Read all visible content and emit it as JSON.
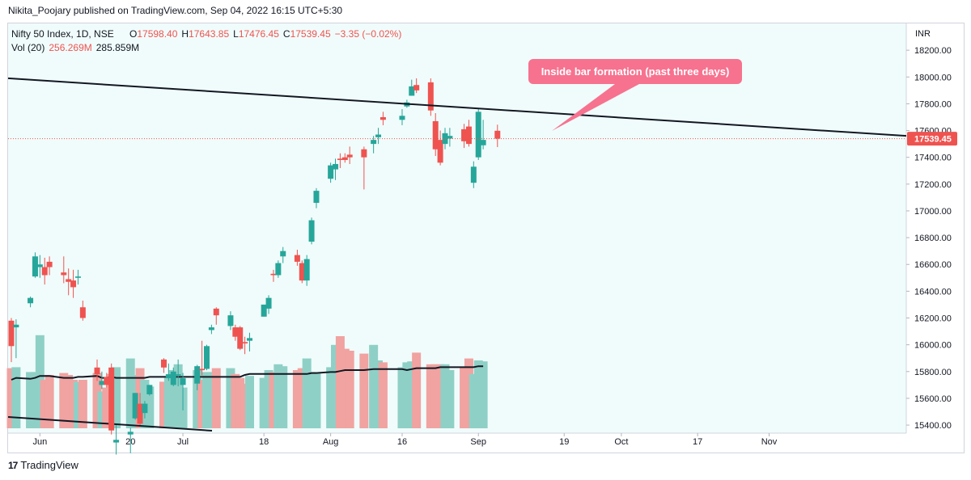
{
  "header": {
    "published": "Nikita_Poojary published on TradingView.com, Sep 04, 2022 16:15 UTC+5:30"
  },
  "legend": {
    "line1": {
      "symbol": "Nifty 50 Index, 1D, NSE",
      "o_label": "O",
      "o": "17598.40",
      "h_label": "H",
      "h": "17643.85",
      "l_label": "L",
      "l": "17476.45",
      "c_label": "C",
      "c": "17539.45",
      "chg": "−3.35 (−0.02%)"
    },
    "line2": {
      "label": "Vol (20)",
      "v1": "256.269M",
      "v2": "285.859M"
    }
  },
  "price_axis": {
    "currency": "INR",
    "last_price": "17539.45"
  },
  "annotation": {
    "text": "Inside bar formation (past three days)"
  },
  "footer": {
    "brand": "TradingView",
    "logo": "17"
  },
  "colors": {
    "up": "#26a69a",
    "down": "#ef5350",
    "vol_up": "#8fd0c6",
    "vol_down": "#f0a3a1",
    "bg": "#f0fcfb",
    "annotation": "#f7728f"
  },
  "chart_data": {
    "type": "candlestick",
    "symbol": "Nifty 50 Index",
    "interval": "1D",
    "y_ticks": [
      15400,
      15600,
      15800,
      16000,
      16200,
      16400,
      16600,
      16800,
      17000,
      17200,
      17400,
      17600,
      17800,
      18000,
      18200
    ],
    "x_ticks": [
      {
        "label": "Jun",
        "date": "2022-06-01"
      },
      {
        "label": "20",
        "date": "2022-06-20"
      },
      {
        "label": "Jul",
        "date": "2022-07-01"
      },
      {
        "label": "18",
        "date": "2022-07-18"
      },
      {
        "label": "Aug",
        "date": "2022-08-01"
      },
      {
        "label": "16",
        "date": "2022-08-16"
      },
      {
        "label": "Sep",
        "date": "2022-09-01"
      },
      {
        "label": "19",
        "date": "2022-09-19"
      },
      {
        "label": "Oct",
        "date": "2022-10-01"
      },
      {
        "label": "17",
        "date": "2022-10-17"
      },
      {
        "label": "Nov",
        "date": "2022-11-01"
      }
    ],
    "candles": [
      {
        "date": "2022-05-26",
        "o": 16180,
        "h": 16200,
        "l": 15870,
        "c": 15990
      },
      {
        "date": "2022-05-27",
        "o": 16130,
        "h": 16190,
        "l": 15900,
        "c": 16150
      },
      {
        "date": "2022-05-30",
        "o": 16310,
        "h": 16360,
        "l": 16280,
        "c": 16350
      },
      {
        "date": "2022-05-31",
        "o": 16510,
        "h": 16690,
        "l": 16500,
        "c": 16660
      },
      {
        "date": "2022-06-01",
        "o": 16580,
        "h": 16670,
        "l": 16500,
        "c": 16600
      },
      {
        "date": "2022-06-02",
        "o": 16580,
        "h": 16650,
        "l": 16450,
        "c": 16520
      },
      {
        "date": "2022-06-03",
        "o": 16620,
        "h": 16660,
        "l": 16520,
        "c": 16580
      },
      {
        "date": "2022-06-06",
        "o": 16540,
        "h": 16660,
        "l": 16460,
        "c": 16520
      },
      {
        "date": "2022-06-07",
        "o": 16490,
        "h": 16570,
        "l": 16370,
        "c": 16470
      },
      {
        "date": "2022-06-08",
        "o": 16480,
        "h": 16560,
        "l": 16350,
        "c": 16430
      },
      {
        "date": "2022-06-09",
        "o": 16500,
        "h": 16560,
        "l": 16450,
        "c": 16510
      },
      {
        "date": "2022-06-10",
        "o": 16280,
        "h": 16330,
        "l": 16180,
        "c": 16200
      },
      {
        "date": "2022-06-13",
        "o": 15830,
        "h": 15890,
        "l": 15730,
        "c": 15780
      },
      {
        "date": "2022-06-14",
        "o": 15700,
        "h": 15800,
        "l": 15670,
        "c": 15730
      },
      {
        "date": "2022-06-15",
        "o": 15760,
        "h": 15790,
        "l": 15680,
        "c": 15700
      },
      {
        "date": "2022-06-16",
        "o": 15830,
        "h": 15860,
        "l": 15330,
        "c": 15360
      },
      {
        "date": "2022-06-17",
        "o": 15270,
        "h": 15400,
        "l": 15180,
        "c": 15290
      },
      {
        "date": "2022-06-20",
        "o": 15330,
        "h": 15380,
        "l": 15190,
        "c": 15350
      },
      {
        "date": "2022-06-21",
        "o": 15450,
        "h": 15640,
        "l": 15440,
        "c": 15640
      },
      {
        "date": "2022-06-22",
        "o": 15560,
        "h": 15640,
        "l": 15400,
        "c": 15410
      },
      {
        "date": "2022-06-23",
        "o": 15490,
        "h": 15580,
        "l": 15450,
        "c": 15560
      },
      {
        "date": "2022-06-24",
        "o": 15630,
        "h": 15700,
        "l": 15620,
        "c": 15700
      },
      {
        "date": "2022-06-27",
        "o": 15890,
        "h": 15900,
        "l": 15790,
        "c": 15830
      },
      {
        "date": "2022-06-28",
        "o": 15750,
        "h": 15860,
        "l": 15730,
        "c": 15780
      },
      {
        "date": "2022-06-29",
        "o": 15700,
        "h": 15830,
        "l": 15690,
        "c": 15800
      },
      {
        "date": "2022-06-30",
        "o": 15770,
        "h": 15890,
        "l": 15690,
        "c": 15780
      },
      {
        "date": "2022-07-01",
        "o": 15700,
        "h": 15790,
        "l": 15510,
        "c": 15750
      },
      {
        "date": "2022-07-04",
        "o": 15710,
        "h": 15850,
        "l": 15660,
        "c": 15840
      },
      {
        "date": "2022-07-05",
        "o": 15820,
        "h": 16030,
        "l": 15770,
        "c": 15810
      },
      {
        "date": "2022-07-06",
        "o": 15820,
        "h": 16000,
        "l": 15810,
        "c": 15990
      },
      {
        "date": "2022-07-07",
        "o": 16110,
        "h": 16150,
        "l": 16080,
        "c": 16130
      },
      {
        "date": "2022-07-08",
        "o": 16270,
        "h": 16280,
        "l": 16150,
        "c": 16220
      },
      {
        "date": "2022-07-11",
        "o": 16140,
        "h": 16250,
        "l": 16110,
        "c": 16220
      },
      {
        "date": "2022-07-12",
        "o": 16130,
        "h": 16150,
        "l": 16030,
        "c": 16060
      },
      {
        "date": "2022-07-13",
        "o": 16130,
        "h": 16140,
        "l": 15960,
        "c": 15970
      },
      {
        "date": "2022-07-14",
        "o": 16020,
        "h": 16060,
        "l": 15930,
        "c": 16010
      },
      {
        "date": "2022-07-15",
        "o": 16030,
        "h": 16090,
        "l": 15950,
        "c": 16050
      },
      {
        "date": "2022-07-18",
        "o": 16210,
        "h": 16300,
        "l": 16210,
        "c": 16300
      },
      {
        "date": "2022-07-19",
        "o": 16270,
        "h": 16370,
        "l": 16230,
        "c": 16350
      },
      {
        "date": "2022-07-20",
        "o": 16530,
        "h": 16560,
        "l": 16470,
        "c": 16520
      },
      {
        "date": "2022-07-21",
        "o": 16520,
        "h": 16630,
        "l": 16500,
        "c": 16610
      },
      {
        "date": "2022-07-22",
        "o": 16660,
        "h": 16730,
        "l": 16610,
        "c": 16700
      },
      {
        "date": "2022-07-25",
        "o": 16670,
        "h": 16710,
        "l": 16590,
        "c": 16620
      },
      {
        "date": "2022-07-26",
        "o": 16610,
        "h": 16630,
        "l": 16460,
        "c": 16480
      },
      {
        "date": "2022-07-27",
        "o": 16480,
        "h": 16670,
        "l": 16440,
        "c": 16640
      },
      {
        "date": "2022-07-28",
        "o": 16770,
        "h": 16950,
        "l": 16750,
        "c": 16930
      },
      {
        "date": "2022-07-29",
        "o": 17060,
        "h": 17170,
        "l": 17020,
        "c": 17150
      },
      {
        "date": "2022-08-01",
        "o": 17240,
        "h": 17360,
        "l": 17210,
        "c": 17340
      },
      {
        "date": "2022-08-02",
        "o": 17310,
        "h": 17390,
        "l": 17230,
        "c": 17350
      },
      {
        "date": "2022-08-03",
        "o": 17390,
        "h": 17430,
        "l": 17320,
        "c": 17380
      },
      {
        "date": "2022-08-04",
        "o": 17400,
        "h": 17430,
        "l": 17360,
        "c": 17380
      },
      {
        "date": "2022-08-05",
        "o": 17420,
        "h": 17480,
        "l": 17350,
        "c": 17400
      },
      {
        "date": "2022-08-08",
        "o": 17460,
        "h": 17480,
        "l": 17160,
        "c": 17400
      },
      {
        "date": "2022-08-10",
        "o": 17500,
        "h": 17560,
        "l": 17430,
        "c": 17530
      },
      {
        "date": "2022-08-11",
        "o": 17550,
        "h": 17620,
        "l": 17500,
        "c": 17570
      },
      {
        "date": "2022-08-12",
        "o": 17700,
        "h": 17740,
        "l": 17640,
        "c": 17680
      },
      {
        "date": "2022-08-16",
        "o": 17680,
        "h": 17760,
        "l": 17640,
        "c": 17710
      },
      {
        "date": "2022-08-17",
        "o": 17780,
        "h": 17830,
        "l": 17770,
        "c": 17810
      },
      {
        "date": "2022-08-18",
        "o": 17860,
        "h": 17980,
        "l": 17860,
        "c": 17930
      },
      {
        "date": "2022-08-19",
        "o": 17940,
        "h": 17990,
        "l": 17880,
        "c": 17900
      },
      {
        "date": "2022-08-22",
        "o": 17960,
        "h": 17990,
        "l": 17710,
        "c": 17750
      },
      {
        "date": "2022-08-23",
        "o": 17670,
        "h": 17730,
        "l": 17410,
        "c": 17460
      },
      {
        "date": "2022-08-24",
        "o": 17530,
        "h": 17600,
        "l": 17340,
        "c": 17360
      },
      {
        "date": "2022-08-25",
        "o": 17500,
        "h": 17620,
        "l": 17460,
        "c": 17580
      },
      {
        "date": "2022-08-26",
        "o": 17540,
        "h": 17620,
        "l": 17480,
        "c": 17560
      },
      {
        "date": "2022-08-29",
        "o": 17610,
        "h": 17650,
        "l": 17470,
        "c": 17520
      },
      {
        "date": "2022-08-30",
        "o": 17630,
        "h": 17680,
        "l": 17480,
        "c": 17500
      },
      {
        "date": "2022-08-31",
        "o": 17210,
        "h": 17370,
        "l": 17170,
        "c": 17330
      },
      {
        "date": "2022-09-01",
        "o": 17400,
        "h": 17760,
        "l": 17380,
        "c": 17740
      },
      {
        "date": "2022-09-02",
        "o": 17490,
        "h": 17680,
        "l": 17460,
        "c": 17530
      },
      {
        "date": "2022-09-05",
        "o": 17598.4,
        "h": 17643.85,
        "l": 17476.45,
        "c": 17539.45
      }
    ],
    "volume_levels": [
      0.62,
      0.63,
      0.58,
      0.58,
      0.96,
      0.5,
      0.55,
      0.57,
      0.55,
      0.5,
      0.48,
      0.5,
      0.57,
      0.38,
      0.42,
      0.56,
      0.63,
      0.72,
      0.55,
      0.62,
      0.5,
      0.43,
      0.48,
      0.52,
      0.6,
      0.66,
      0.42,
      0.6,
      0.5,
      0.58,
      0.58,
      0.62,
      0.62,
      0.56,
      0.52,
      0.46,
      0.54,
      0.52,
      0.6,
      0.58,
      0.66,
      0.64,
      0.6,
      0.62,
      0.72,
      0.58,
      0.57,
      0.63,
      0.86,
      0.95,
      0.82,
      0.8,
      0.77,
      0.86,
      0.7,
      0.68,
      0.63,
      0.68,
      0.69,
      0.78,
      0.66,
      0.66,
      0.66,
      0.66,
      0.6,
      0.63,
      0.72,
      0.56,
      0.7,
      0.69
    ],
    "volume_ma_levels": [
      0.5,
      0.52,
      0.51,
      0.52,
      0.54,
      0.54,
      0.54,
      0.52,
      0.52,
      0.52,
      0.53,
      0.53,
      0.54,
      0.52,
      0.52,
      0.53,
      0.52,
      0.52,
      0.52,
      0.52,
      0.52,
      0.53,
      0.53,
      0.53,
      0.53,
      0.53,
      0.53,
      0.53,
      0.53,
      0.53,
      0.53,
      0.53,
      0.53,
      0.53,
      0.53,
      0.55,
      0.56,
      0.56,
      0.56,
      0.56,
      0.56,
      0.56,
      0.56,
      0.56,
      0.56,
      0.57,
      0.57,
      0.58,
      0.58,
      0.59,
      0.6,
      0.6,
      0.6,
      0.61,
      0.61,
      0.61,
      0.61,
      0.6,
      0.61,
      0.62,
      0.62,
      0.62,
      0.63,
      0.63,
      0.63,
      0.63,
      0.63,
      0.63,
      0.64,
      0.64
    ],
    "trendlines": [
      {
        "from": {
          "date": "2022-05-26",
          "value": 17990
        },
        "to": {
          "date": "2022-11-08",
          "value": 17560
        },
        "color": "#131722"
      }
    ],
    "current_price": 17539.45,
    "ylim": [
      15340,
      18400
    ]
  }
}
